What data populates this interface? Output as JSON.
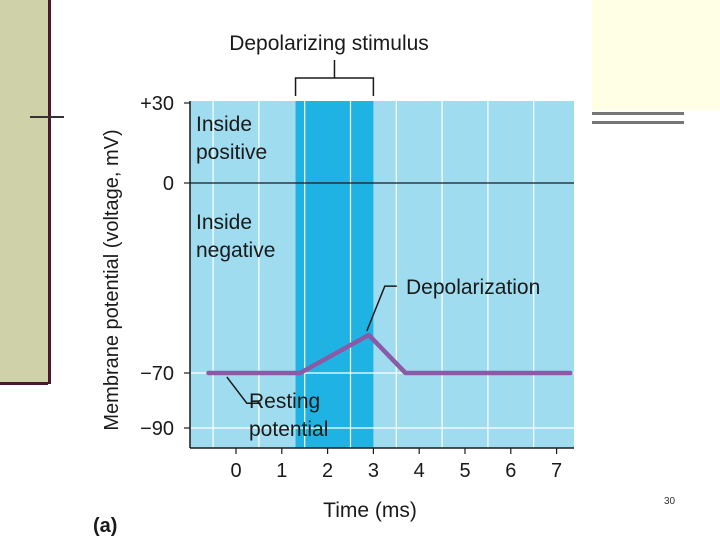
{
  "slide": {
    "page_number": "30"
  },
  "chart_data": {
    "type": "line",
    "title": "Depolarizing stimulus",
    "panel_label": "(a)",
    "xlabel": "Time (ms)",
    "ylabel": "Membrane potential (voltage, mV)",
    "xlim": [
      -1,
      7.3
    ],
    "ylim": [
      -100,
      30
    ],
    "x_ticks": [
      0,
      1,
      2,
      3,
      4,
      5,
      6,
      7
    ],
    "y_ticks": [
      {
        "value": 30,
        "label": "+30"
      },
      {
        "value": 0,
        "label": "0"
      },
      {
        "value": -70,
        "label": "−70"
      },
      {
        "value": -90,
        "label": "−90"
      }
    ],
    "regions": [
      {
        "label": "Inside positive",
        "line1": "Inside",
        "line2": "positive"
      },
      {
        "label": "Inside negative",
        "line1": "Inside",
        "line2": "negative"
      }
    ],
    "stimulus": {
      "start": 1.3,
      "end": 3.0,
      "label": "Depolarizing stimulus"
    },
    "series": [
      {
        "name": "Membrane potential",
        "color": "#8a5aa6",
        "x": [
          -0.6,
          1.4,
          2.9,
          3.7,
          7.3
        ],
        "y": [
          -70,
          -70,
          -56,
          -70,
          -70
        ]
      }
    ],
    "annotations": [
      {
        "text": "Depolarization",
        "x": 2.9,
        "y": -56
      },
      {
        "text": "Resting",
        "text2": "potential",
        "x": -0.2,
        "y": -70
      }
    ],
    "colors": {
      "plot_bg": "#9fdcf0",
      "stimulus_band": "#1fb3e3",
      "grid": "#ffffff",
      "trace": "#8a5aa6"
    }
  }
}
